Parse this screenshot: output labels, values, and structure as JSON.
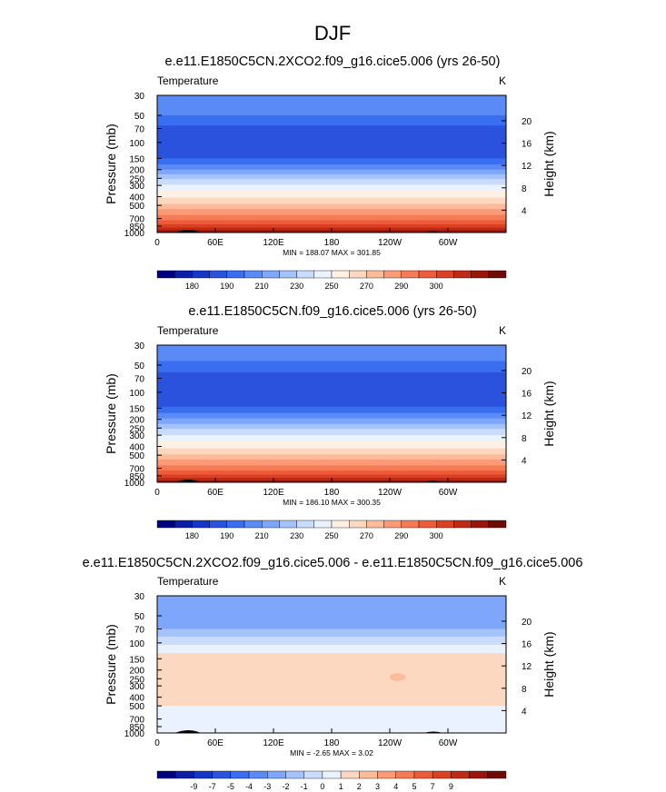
{
  "page_title": "DJF",
  "palettes": {
    "abs": [
      "#000080",
      "#0b1ea8",
      "#1536c8",
      "#2a52dc",
      "#3a6ef0",
      "#5a8af6",
      "#7ea6fa",
      "#a4c2fc",
      "#cadcfe",
      "#ebf2ff",
      "#fff0e4",
      "#fdd8c0",
      "#fcbb9b",
      "#fa9a76",
      "#f57b56",
      "#ec5c3a",
      "#dc4022",
      "#bf2a14",
      "#98160a",
      "#700a04"
    ],
    "diff": [
      "#000080",
      "#0b1ea8",
      "#1536c8",
      "#2a52dc",
      "#3a6ef0",
      "#5a8af6",
      "#7ea6fa",
      "#a4c2fc",
      "#cadcfe",
      "#ebf2ff",
      "#fdd8c0",
      "#fcbb9b",
      "#fa9a76",
      "#f57b56",
      "#ec5c3a",
      "#dc4022",
      "#bf2a14",
      "#98160a",
      "#700a04"
    ]
  },
  "chart_data": [
    {
      "type": "heatmap",
      "title": "e.e11.E1850C5CN.2XCO2.f09_g16.cice5.006 (yrs 26-50)",
      "variable_label": "Temperature",
      "units": "K",
      "ylabel": "Pressure (mb)",
      "y2label": "Height (km)",
      "x_ticks": [
        "0",
        "60E",
        "120E",
        "180",
        "120W",
        "60W"
      ],
      "x_tick_values": [
        0,
        60,
        120,
        180,
        240,
        300
      ],
      "xlim": [
        0,
        360
      ],
      "y_ticks": [
        "30",
        "50",
        "70",
        "100",
        "150",
        "200",
        "250",
        "300",
        "400",
        "500",
        "700",
        "850",
        "1000"
      ],
      "y_tick_values": [
        30,
        50,
        70,
        100,
        150,
        200,
        250,
        300,
        400,
        500,
        700,
        850,
        1000
      ],
      "ylim": [
        30,
        1000
      ],
      "height_ticks": [
        "4",
        "8",
        "12",
        "16",
        "20"
      ],
      "height_values": [
        4,
        8,
        12,
        16,
        20
      ],
      "stats": "MIN = 188.07   MAX = 301.85",
      "palette": "abs",
      "colorbar_labels": [
        "180",
        "190",
        "210",
        "230",
        "250",
        "270",
        "290",
        "300"
      ],
      "bands": [
        {
          "p": 30,
          "level": 200
        },
        {
          "p": 50,
          "level": 195
        },
        {
          "p": 65,
          "level": 192
        },
        {
          "p": 150,
          "level": 195
        },
        {
          "p": 175,
          "level": 200
        },
        {
          "p": 200,
          "level": 210
        },
        {
          "p": 225,
          "level": 220
        },
        {
          "p": 255,
          "level": 230
        },
        {
          "p": 295,
          "level": 240
        },
        {
          "p": 345,
          "level": 250
        },
        {
          "p": 410,
          "level": 255
        },
        {
          "p": 480,
          "level": 260
        },
        {
          "p": 550,
          "level": 265
        },
        {
          "p": 640,
          "level": 270
        },
        {
          "p": 730,
          "level": 275
        },
        {
          "p": 810,
          "level": 280
        },
        {
          "p": 880,
          "level": 285
        },
        {
          "p": 940,
          "level": 290
        }
      ],
      "features": [
        {
          "kind": "blob",
          "lon": 150,
          "p": 100,
          "dlon": 55,
          "dp": 8,
          "level": 190
        }
      ]
    },
    {
      "type": "heatmap",
      "title": "e.e11.E1850C5CN.f09_g16.cice5.006 (yrs 26-50)",
      "variable_label": "Temperature",
      "units": "K",
      "ylabel": "Pressure (mb)",
      "y2label": "Height (km)",
      "x_ticks": [
        "0",
        "60E",
        "120E",
        "180",
        "120W",
        "60W"
      ],
      "x_tick_values": [
        0,
        60,
        120,
        180,
        240,
        300
      ],
      "xlim": [
        0,
        360
      ],
      "y_ticks": [
        "30",
        "50",
        "70",
        "100",
        "150",
        "200",
        "250",
        "300",
        "400",
        "500",
        "700",
        "850",
        "1000"
      ],
      "y_tick_values": [
        30,
        50,
        70,
        100,
        150,
        200,
        250,
        300,
        400,
        500,
        700,
        850,
        1000
      ],
      "ylim": [
        30,
        1000
      ],
      "height_ticks": [
        "4",
        "8",
        "12",
        "16",
        "20"
      ],
      "height_values": [
        4,
        8,
        12,
        16,
        20
      ],
      "stats": "MIN = 186.10   MAX = 300.35",
      "palette": "abs",
      "colorbar_labels": [
        "180",
        "190",
        "210",
        "230",
        "250",
        "270",
        "290",
        "300"
      ],
      "bands": [
        {
          "p": 30,
          "level": 200
        },
        {
          "p": 45,
          "level": 195
        },
        {
          "p": 60,
          "level": 192
        },
        {
          "p": 145,
          "level": 195
        },
        {
          "p": 170,
          "level": 200
        },
        {
          "p": 195,
          "level": 210
        },
        {
          "p": 225,
          "level": 220
        },
        {
          "p": 255,
          "level": 230
        },
        {
          "p": 300,
          "level": 240
        },
        {
          "p": 350,
          "level": 250
        },
        {
          "p": 420,
          "level": 255
        },
        {
          "p": 490,
          "level": 260
        },
        {
          "p": 560,
          "level": 265
        },
        {
          "p": 650,
          "level": 270
        },
        {
          "p": 740,
          "level": 275
        },
        {
          "p": 820,
          "level": 280
        },
        {
          "p": 890,
          "level": 285
        },
        {
          "p": 950,
          "level": 290
        }
      ],
      "features": [
        {
          "kind": "blob",
          "lon": 165,
          "p": 100,
          "dlon": 85,
          "dp": 8,
          "level": 190
        }
      ]
    },
    {
      "type": "heatmap",
      "title": "e.e11.E1850C5CN.2XCO2.f09_g16.cice5.006 - e.e11.E1850C5CN.f09_g16.cice5.006",
      "variable_label": "Temperature",
      "units": "K",
      "ylabel": "Pressure (mb)",
      "y2label": "Height (km)",
      "x_ticks": [
        "0",
        "60E",
        "120E",
        "180",
        "120W",
        "60W"
      ],
      "x_tick_values": [
        0,
        60,
        120,
        180,
        240,
        300
      ],
      "xlim": [
        0,
        360
      ],
      "y_ticks": [
        "30",
        "50",
        "70",
        "100",
        "150",
        "200",
        "250",
        "300",
        "400",
        "500",
        "700",
        "850",
        "1000"
      ],
      "y_tick_values": [
        30,
        50,
        70,
        100,
        150,
        200,
        250,
        300,
        400,
        500,
        700,
        850,
        1000
      ],
      "ylim": [
        30,
        1000
      ],
      "height_ticks": [
        "4",
        "8",
        "12",
        "16",
        "20"
      ],
      "height_values": [
        4,
        8,
        12,
        16,
        20
      ],
      "stats": "MIN =  -2.65   MAX =   3.02",
      "palette": "diff",
      "colorbar_labels": [
        "-9",
        "-7",
        "-5",
        "-4",
        "-3",
        "-2",
        "-1",
        "0",
        "1",
        "2",
        "3",
        "4",
        "5",
        "7",
        "9"
      ],
      "bands": [
        {
          "p": 30,
          "level": -2
        },
        {
          "p": 55,
          "level": -1.5
        },
        {
          "p": 70,
          "level": -1
        },
        {
          "p": 85,
          "level": 0
        },
        {
          "p": 105,
          "level": 1
        },
        {
          "p": 130,
          "level": 2
        },
        {
          "p": 500,
          "level": 1.5
        }
      ],
      "features": [
        {
          "kind": "blob",
          "lon": 248,
          "p": 240,
          "dlon": 8,
          "dp": 8,
          "level": 3
        }
      ]
    }
  ]
}
